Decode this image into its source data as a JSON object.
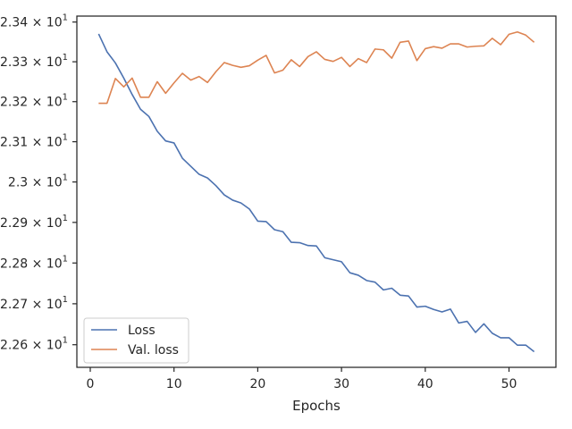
{
  "chart_data": {
    "type": "line",
    "title": "",
    "xlabel": "Epochs",
    "ylabel": "",
    "yscale": "log",
    "xlim": [
      -1.6,
      55.6
    ],
    "ylim": [
      22.545,
      23.415
    ],
    "x_ticks": [
      0,
      10,
      20,
      30,
      40,
      50
    ],
    "y_ticks": [
      {
        "value": 22.6,
        "mantissa": "2.26",
        "exponent": "1"
      },
      {
        "value": 22.7,
        "mantissa": "2.27",
        "exponent": "1"
      },
      {
        "value": 22.8,
        "mantissa": "2.28",
        "exponent": "1"
      },
      {
        "value": 22.9,
        "mantissa": "2.29",
        "exponent": "1"
      },
      {
        "value": 23.0,
        "mantissa": "2.3",
        "exponent": "1"
      },
      {
        "value": 23.1,
        "mantissa": "2.31",
        "exponent": "1"
      },
      {
        "value": 23.2,
        "mantissa": "2.32",
        "exponent": "1"
      },
      {
        "value": 23.3,
        "mantissa": "2.33",
        "exponent": "1"
      },
      {
        "value": 23.4,
        "mantissa": "2.34",
        "exponent": "1"
      }
    ],
    "multiply_sign": "×",
    "base": "10",
    "grid": false,
    "legend_position": "lower left",
    "x": [
      1,
      2,
      3,
      4,
      5,
      6,
      7,
      8,
      9,
      10,
      11,
      12,
      13,
      14,
      15,
      16,
      17,
      18,
      19,
      20,
      21,
      22,
      23,
      24,
      25,
      26,
      27,
      28,
      29,
      30,
      31,
      32,
      33,
      34,
      35,
      36,
      37,
      38,
      39,
      40,
      41,
      42,
      43,
      44,
      45,
      46,
      47,
      48,
      49,
      50,
      51,
      52,
      53
    ],
    "series": [
      {
        "name": "Loss",
        "color": "#4c72b0",
        "values": [
          23.37,
          23.325,
          23.297,
          23.259,
          23.218,
          23.181,
          23.163,
          23.126,
          23.102,
          23.097,
          23.059,
          23.039,
          23.019,
          23.01,
          22.991,
          22.968,
          22.955,
          22.948,
          22.933,
          22.903,
          22.902,
          22.882,
          22.877,
          22.851,
          22.85,
          22.843,
          22.842,
          22.813,
          22.808,
          22.803,
          22.776,
          22.77,
          22.757,
          22.753,
          22.734,
          22.738,
          22.721,
          22.719,
          22.692,
          22.694,
          22.686,
          22.68,
          22.687,
          22.653,
          22.657,
          22.63,
          22.651,
          22.628,
          22.617,
          22.617,
          22.599,
          22.599,
          22.583
        ]
      },
      {
        "name": "Val. loss",
        "color": "#dd8452",
        "values": [
          23.196,
          23.196,
          23.258,
          23.237,
          23.259,
          23.211,
          23.211,
          23.25,
          23.221,
          23.247,
          23.271,
          23.254,
          23.263,
          23.248,
          23.275,
          23.298,
          23.291,
          23.286,
          23.29,
          23.304,
          23.316,
          23.272,
          23.279,
          23.305,
          23.288,
          23.313,
          23.325,
          23.306,
          23.301,
          23.311,
          23.288,
          23.308,
          23.298,
          23.332,
          23.33,
          23.309,
          23.349,
          23.352,
          23.303,
          23.333,
          23.338,
          23.334,
          23.345,
          23.345,
          23.337,
          23.339,
          23.34,
          23.359,
          23.343,
          23.369,
          23.375,
          23.367,
          23.349
        ]
      }
    ]
  }
}
